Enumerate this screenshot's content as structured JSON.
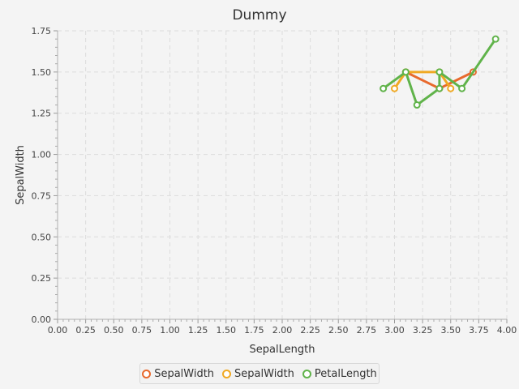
{
  "chart_data": {
    "type": "line",
    "title": "Dummy",
    "xlabel": "SepalLength",
    "ylabel": "SepalWidth",
    "xlim": [
      0,
      4
    ],
    "ylim": [
      0,
      1.75
    ],
    "xticks": [
      "0.00",
      "0.25",
      "0.50",
      "0.75",
      "1.00",
      "1.25",
      "1.50",
      "1.75",
      "2.00",
      "2.25",
      "2.50",
      "2.75",
      "3.00",
      "3.25",
      "3.50",
      "3.75",
      "4.00"
    ],
    "yticks": [
      "0.00",
      "0.25",
      "0.50",
      "0.75",
      "1.00",
      "1.25",
      "1.50",
      "1.75"
    ],
    "grid": true,
    "legend_position": "bottom",
    "series": [
      {
        "name": "SepalWidth",
        "color": "#e8692d",
        "points": [
          [
            3.1,
            1.5
          ],
          [
            3.4,
            1.4
          ],
          [
            3.7,
            1.5
          ]
        ]
      },
      {
        "name": "SepalWidth",
        "color": "#f0a923",
        "points": [
          [
            3.0,
            1.4
          ],
          [
            3.1,
            1.5
          ],
          [
            3.4,
            1.5
          ],
          [
            3.5,
            1.4
          ]
        ]
      },
      {
        "name": "PetalLength",
        "color": "#60b34a",
        "points": [
          [
            2.9,
            1.4
          ],
          [
            3.1,
            1.5
          ],
          [
            3.2,
            1.3
          ],
          [
            3.4,
            1.4
          ],
          [
            3.4,
            1.5
          ],
          [
            3.6,
            1.4
          ],
          [
            3.9,
            1.7
          ]
        ]
      }
    ]
  }
}
